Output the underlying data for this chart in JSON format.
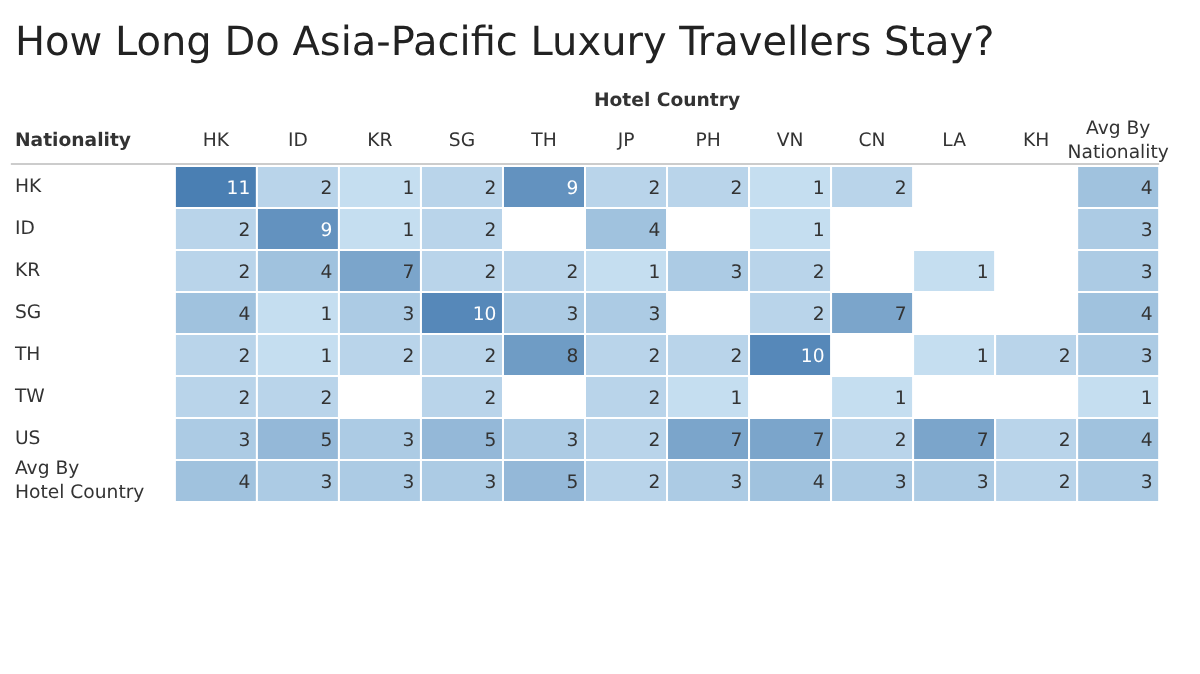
{
  "chart_data": {
    "type": "heatmap",
    "title": "How Long Do Asia-Pacific Luxury Travellers Stay?",
    "xlabel": "Hotel Country",
    "ylabel": "Nationality",
    "data_labels": true,
    "categories": [
      "HK",
      "ID",
      "KR",
      "SG",
      "TH",
      "JP",
      "PH",
      "VN",
      "CN",
      "LA",
      "KH",
      "Avg By Nationality"
    ],
    "y_categories": [
      "HK",
      "ID",
      "KR",
      "SG",
      "TH",
      "TW",
      "US",
      "Avg By Hotel Country"
    ],
    "cells": [
      [
        11,
        2,
        1,
        2,
        9,
        2,
        2,
        1,
        2,
        null,
        null,
        4
      ],
      [
        2,
        9,
        1,
        2,
        null,
        4,
        null,
        1,
        null,
        null,
        null,
        3
      ],
      [
        2,
        4,
        7,
        2,
        2,
        1,
        3,
        2,
        null,
        1,
        null,
        3
      ],
      [
        4,
        1,
        3,
        10,
        3,
        3,
        null,
        2,
        7,
        null,
        null,
        4
      ],
      [
        2,
        1,
        2,
        2,
        8,
        2,
        2,
        10,
        null,
        1,
        2,
        3
      ],
      [
        2,
        2,
        null,
        2,
        null,
        2,
        1,
        null,
        1,
        null,
        null,
        1
      ],
      [
        3,
        5,
        3,
        5,
        3,
        2,
        7,
        7,
        2,
        7,
        2,
        4
      ],
      [
        4,
        3,
        3,
        3,
        5,
        2,
        3,
        4,
        3,
        3,
        2,
        3
      ]
    ]
  }
}
